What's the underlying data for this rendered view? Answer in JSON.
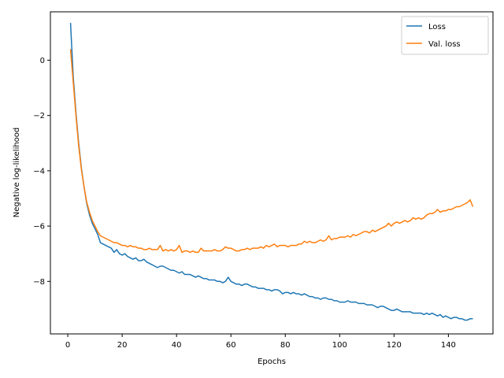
{
  "chart_data": {
    "type": "line",
    "xlabel": "Epochs",
    "ylabel": "Negative log-likelihood",
    "xlim": [
      -6.4,
      156.4
    ],
    "ylim": [
      -9.9,
      1.75
    ],
    "xticks": [
      0,
      20,
      40,
      60,
      80,
      100,
      120,
      140
    ],
    "yticks": [
      0,
      -2,
      -4,
      -6,
      -8
    ],
    "grid": false,
    "legend_position": "top-right",
    "series": [
      {
        "name": "Loss",
        "color": "#1f77b4",
        "x": [
          1,
          2,
          3,
          4,
          5,
          6,
          7,
          8,
          9,
          10,
          11,
          12,
          13,
          14,
          15,
          16,
          17,
          18,
          19,
          20,
          21,
          22,
          23,
          24,
          25,
          26,
          27,
          28,
          29,
          30,
          31,
          32,
          33,
          34,
          35,
          36,
          37,
          38,
          39,
          40,
          41,
          42,
          43,
          44,
          45,
          46,
          47,
          48,
          49,
          50,
          51,
          52,
          53,
          54,
          55,
          56,
          57,
          58,
          59,
          60,
          61,
          62,
          63,
          64,
          65,
          66,
          67,
          68,
          69,
          70,
          71,
          72,
          73,
          74,
          75,
          76,
          77,
          78,
          79,
          80,
          81,
          82,
          83,
          84,
          85,
          86,
          87,
          88,
          89,
          90,
          91,
          92,
          93,
          94,
          95,
          96,
          97,
          98,
          99,
          100,
          101,
          102,
          103,
          104,
          105,
          106,
          107,
          108,
          109,
          110,
          111,
          112,
          113,
          114,
          115,
          116,
          117,
          118,
          119,
          120,
          121,
          122,
          123,
          124,
          125,
          126,
          127,
          128,
          129,
          130,
          131,
          132,
          133,
          134,
          135,
          136,
          137,
          138,
          139,
          140,
          141,
          142,
          143,
          144,
          145,
          146,
          147,
          148,
          149
        ],
        "y": [
          1.35,
          -0.6,
          -1.9,
          -3.0,
          -3.9,
          -4.6,
          -5.2,
          -5.6,
          -5.9,
          -6.1,
          -6.3,
          -6.6,
          -6.65,
          -6.7,
          -6.75,
          -6.8,
          -6.95,
          -6.85,
          -7.0,
          -7.05,
          -7.0,
          -7.1,
          -7.15,
          -7.2,
          -7.15,
          -7.25,
          -7.25,
          -7.2,
          -7.3,
          -7.35,
          -7.4,
          -7.45,
          -7.5,
          -7.45,
          -7.45,
          -7.5,
          -7.55,
          -7.6,
          -7.6,
          -7.65,
          -7.7,
          -7.65,
          -7.75,
          -7.75,
          -7.75,
          -7.8,
          -7.85,
          -7.8,
          -7.85,
          -7.9,
          -7.9,
          -7.95,
          -7.95,
          -7.95,
          -8.0,
          -8.0,
          -8.05,
          -8.0,
          -7.85,
          -8.0,
          -8.05,
          -8.1,
          -8.1,
          -8.15,
          -8.1,
          -8.1,
          -8.15,
          -8.2,
          -8.2,
          -8.25,
          -8.25,
          -8.25,
          -8.3,
          -8.3,
          -8.35,
          -8.3,
          -8.3,
          -8.35,
          -8.45,
          -8.4,
          -8.4,
          -8.45,
          -8.4,
          -8.45,
          -8.45,
          -8.5,
          -8.45,
          -8.5,
          -8.55,
          -8.55,
          -8.6,
          -8.6,
          -8.65,
          -8.6,
          -8.6,
          -8.65,
          -8.65,
          -8.7,
          -8.7,
          -8.75,
          -8.75,
          -8.75,
          -8.7,
          -8.75,
          -8.75,
          -8.75,
          -8.8,
          -8.8,
          -8.8,
          -8.85,
          -8.85,
          -8.85,
          -8.9,
          -8.95,
          -8.9,
          -8.9,
          -8.95,
          -9.0,
          -9.05,
          -9.05,
          -9.0,
          -9.05,
          -9.1,
          -9.1,
          -9.1,
          -9.1,
          -9.15,
          -9.15,
          -9.15,
          -9.15,
          -9.2,
          -9.15,
          -9.2,
          -9.15,
          -9.2,
          -9.25,
          -9.2,
          -9.3,
          -9.25,
          -9.3,
          -9.35,
          -9.3,
          -9.3,
          -9.35,
          -9.35,
          -9.4,
          -9.4,
          -9.35,
          -9.35
        ]
      },
      {
        "name": "Val. loss",
        "color": "#ff7f0e",
        "x": [
          1,
          2,
          3,
          4,
          5,
          6,
          7,
          8,
          9,
          10,
          11,
          12,
          13,
          14,
          15,
          16,
          17,
          18,
          19,
          20,
          21,
          22,
          23,
          24,
          25,
          26,
          27,
          28,
          29,
          30,
          31,
          32,
          33,
          34,
          35,
          36,
          37,
          38,
          39,
          40,
          41,
          42,
          43,
          44,
          45,
          46,
          47,
          48,
          49,
          50,
          51,
          52,
          53,
          54,
          55,
          56,
          57,
          58,
          59,
          60,
          61,
          62,
          63,
          64,
          65,
          66,
          67,
          68,
          69,
          70,
          71,
          72,
          73,
          74,
          75,
          76,
          77,
          78,
          79,
          80,
          81,
          82,
          83,
          84,
          85,
          86,
          87,
          88,
          89,
          90,
          91,
          92,
          93,
          94,
          95,
          96,
          97,
          98,
          99,
          100,
          101,
          102,
          103,
          104,
          105,
          106,
          107,
          108,
          109,
          110,
          111,
          112,
          113,
          114,
          115,
          116,
          117,
          118,
          119,
          120,
          121,
          122,
          123,
          124,
          125,
          126,
          127,
          128,
          129,
          130,
          131,
          132,
          133,
          134,
          135,
          136,
          137,
          138,
          139,
          140,
          141,
          142,
          143,
          144,
          145,
          146,
          147,
          148,
          149
        ],
        "y": [
          0.4,
          -0.8,
          -2.0,
          -3.1,
          -3.95,
          -4.6,
          -5.15,
          -5.5,
          -5.8,
          -6.0,
          -6.2,
          -6.35,
          -6.4,
          -6.45,
          -6.5,
          -6.55,
          -6.6,
          -6.6,
          -6.65,
          -6.7,
          -6.7,
          -6.75,
          -6.7,
          -6.75,
          -6.75,
          -6.8,
          -6.8,
          -6.85,
          -6.85,
          -6.8,
          -6.85,
          -6.85,
          -6.85,
          -6.7,
          -6.9,
          -6.85,
          -6.9,
          -6.85,
          -6.9,
          -6.85,
          -6.7,
          -6.95,
          -6.9,
          -6.9,
          -6.95,
          -6.9,
          -6.95,
          -6.95,
          -6.8,
          -6.9,
          -6.9,
          -6.9,
          -6.9,
          -6.85,
          -6.9,
          -6.9,
          -6.85,
          -6.75,
          -6.8,
          -6.8,
          -6.85,
          -6.9,
          -6.9,
          -6.85,
          -6.85,
          -6.8,
          -6.85,
          -6.8,
          -6.8,
          -6.8,
          -6.75,
          -6.8,
          -6.7,
          -6.75,
          -6.7,
          -6.65,
          -6.75,
          -6.7,
          -6.7,
          -6.7,
          -6.75,
          -6.7,
          -6.7,
          -6.7,
          -6.65,
          -6.65,
          -6.55,
          -6.6,
          -6.55,
          -6.6,
          -6.6,
          -6.55,
          -6.5,
          -6.55,
          -6.5,
          -6.35,
          -6.5,
          -6.45,
          -6.45,
          -6.4,
          -6.4,
          -6.4,
          -6.35,
          -6.4,
          -6.3,
          -6.35,
          -6.3,
          -6.25,
          -6.2,
          -6.2,
          -6.25,
          -6.15,
          -6.2,
          -6.15,
          -6.1,
          -6.05,
          -6.0,
          -5.9,
          -6.0,
          -5.9,
          -5.85,
          -5.9,
          -5.85,
          -5.8,
          -5.85,
          -5.8,
          -5.7,
          -5.75,
          -5.7,
          -5.75,
          -5.7,
          -5.6,
          -5.55,
          -5.55,
          -5.5,
          -5.4,
          -5.5,
          -5.45,
          -5.45,
          -5.4,
          -5.4,
          -5.35,
          -5.3,
          -5.3,
          -5.25,
          -5.2,
          -5.15,
          -5.05,
          -5.3
        ]
      }
    ]
  }
}
